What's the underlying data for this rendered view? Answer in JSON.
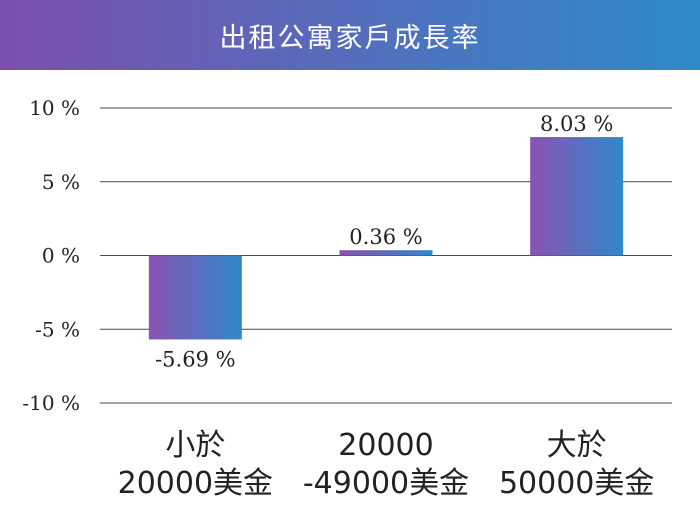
{
  "title": "出租公寓家戶成長率",
  "colors": {
    "header_left": "#7b4fae",
    "header_right": "#2e8bc9",
    "bar_left": "#8a52b3",
    "bar_right": "#3089c8",
    "grid": "#4a4a4a",
    "text": "#222222"
  },
  "chart_data": {
    "type": "bar",
    "title": "出租公寓家戶成長率",
    "categories": [
      [
        "小於",
        "20000美金"
      ],
      [
        "20000",
        "-49000美金"
      ],
      [
        "大於",
        "50000美金"
      ]
    ],
    "values": [
      -5.69,
      0.36,
      8.03
    ],
    "value_labels": [
      "-5.69 %",
      "0.36 %",
      "8.03 %"
    ],
    "ylim": [
      -10,
      10
    ],
    "yticks": [
      10,
      5,
      0,
      -5,
      -10
    ],
    "ytick_labels": [
      "10 %",
      "5 %",
      "0 %",
      "-5 %",
      "-10 %"
    ],
    "grid": true,
    "xlabel": "",
    "ylabel": ""
  }
}
